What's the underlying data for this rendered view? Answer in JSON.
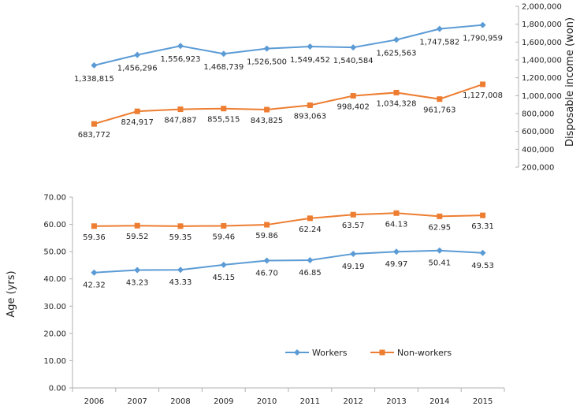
{
  "chart_data": [
    {
      "type": "line",
      "title": "",
      "x": [
        "2006",
        "2007",
        "2008",
        "2009",
        "2010",
        "2011",
        "2012",
        "2013",
        "2014",
        "2015"
      ],
      "ylabel": "Disposable income (won)",
      "ylim": [
        200000,
        2000000
      ],
      "yticks": [
        "200,000",
        "400,000",
        "600,000",
        "800,000",
        "1,000,000",
        "1,200,000",
        "1,400,000",
        "1,600,000",
        "1,800,000",
        "2,000,000"
      ],
      "ytick_values": [
        200000,
        400000,
        600000,
        800000,
        1000000,
        1200000,
        1400000,
        1600000,
        1800000,
        2000000
      ],
      "series": [
        {
          "name": "Workers",
          "color": "#5b9bd5",
          "marker": "diamond",
          "values": [
            1338815,
            1456296,
            1556923,
            1468739,
            1526500,
            1549452,
            1540584,
            1625563,
            1747582,
            1790959
          ],
          "labels": [
            "1,338,815",
            "1,456,296",
            "1,556,923",
            "1,468,739",
            "1,526,500",
            "1,549,452",
            "1,540,584",
            "1,625,563",
            "1,747,582",
            "1,790,959"
          ]
        },
        {
          "name": "Non-workers",
          "color": "#ed7d31",
          "marker": "square",
          "values": [
            683772,
            824917,
            847887,
            855515,
            843825,
            893063,
            998402,
            1034328,
            961763,
            1127008
          ],
          "labels": [
            "683,772",
            "824,917",
            "847,887",
            "855,515",
            "843,825",
            "893,063",
            "998,402",
            "1,034,328",
            "961,763",
            "1,127,008"
          ]
        }
      ]
    },
    {
      "type": "line",
      "title": "",
      "x": [
        "2006",
        "2007",
        "2008",
        "2009",
        "2010",
        "2011",
        "2012",
        "2013",
        "2014",
        "2015"
      ],
      "xlabel": "",
      "ylabel": "Age (yrs)",
      "ylim": [
        0,
        70
      ],
      "yticks": [
        "0.00",
        "10.00",
        "20.00",
        "30.00",
        "40.00",
        "50.00",
        "60.00",
        "70.00"
      ],
      "ytick_values": [
        0,
        10,
        20,
        30,
        40,
        50,
        60,
        70
      ],
      "legend_position": "bottom-right",
      "series": [
        {
          "name": "Workers",
          "color": "#5b9bd5",
          "marker": "diamond",
          "values": [
            42.32,
            43.23,
            43.33,
            45.15,
            46.7,
            46.85,
            49.19,
            49.97,
            50.41,
            49.53
          ],
          "labels": [
            "42.32",
            "43.23",
            "43.33",
            "45.15",
            "46.70",
            "46.85",
            "49.19",
            "49.97",
            "50.41",
            "49.53"
          ]
        },
        {
          "name": "Non-workers",
          "color": "#ed7d31",
          "marker": "square",
          "values": [
            59.36,
            59.52,
            59.35,
            59.46,
            59.86,
            62.24,
            63.57,
            64.13,
            62.95,
            63.31
          ],
          "labels": [
            "59.36",
            "59.52",
            "59.35",
            "59.46",
            "59.86",
            "62.24",
            "63.57",
            "64.13",
            "62.95",
            "63.31"
          ]
        }
      ]
    }
  ],
  "legend": {
    "items": [
      {
        "label": "Workers",
        "color": "#5b9bd5",
        "marker": "diamond"
      },
      {
        "label": "Non-workers",
        "color": "#ed7d31",
        "marker": "square"
      }
    ]
  }
}
